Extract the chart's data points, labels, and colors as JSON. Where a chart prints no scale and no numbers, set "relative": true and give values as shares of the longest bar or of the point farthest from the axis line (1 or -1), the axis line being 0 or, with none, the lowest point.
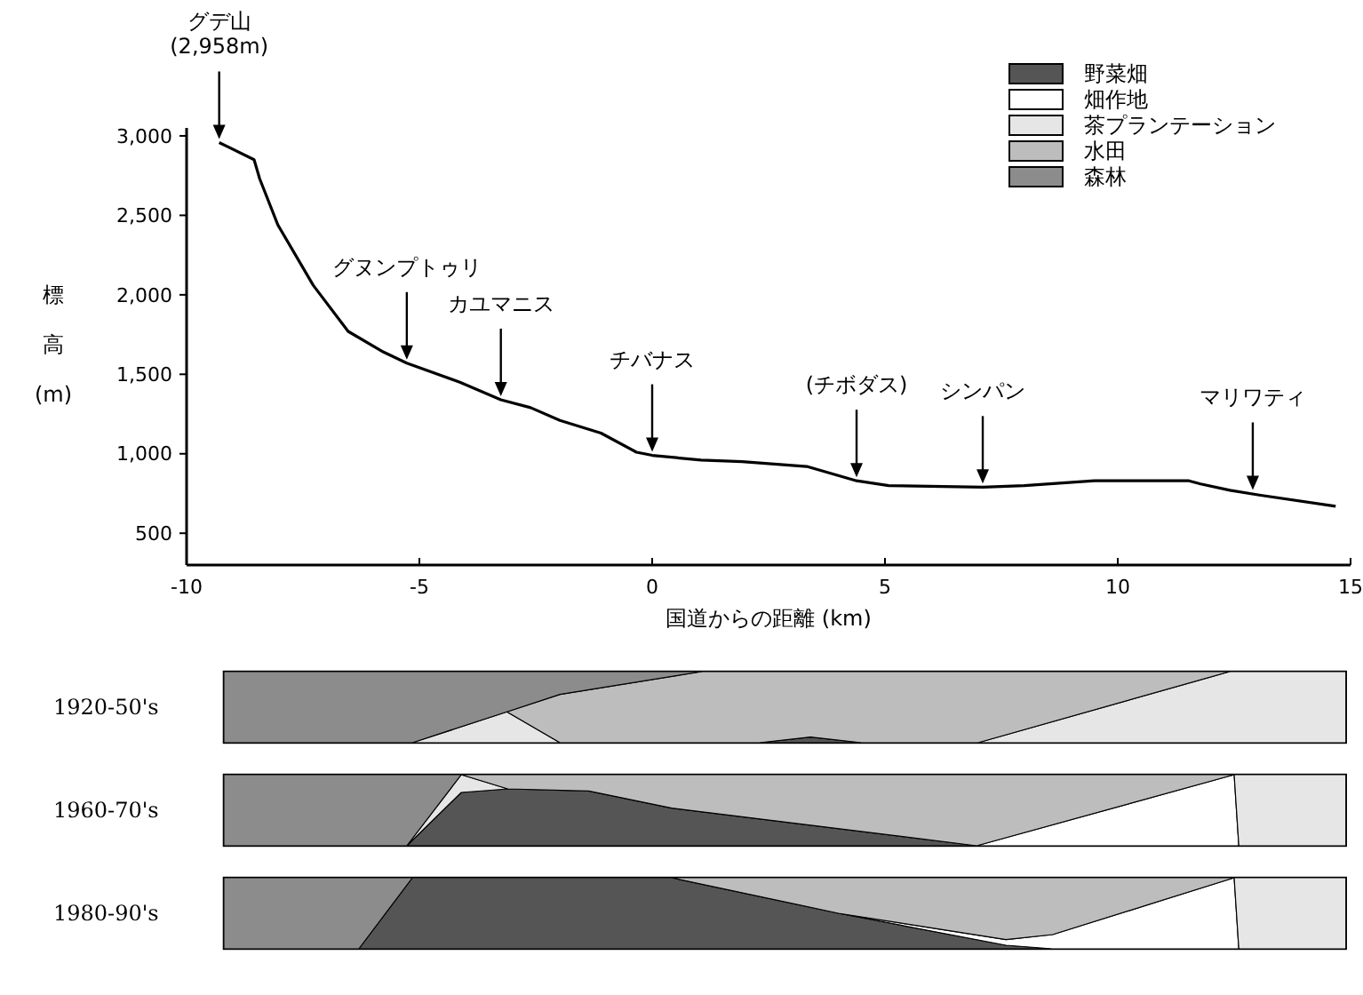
{
  "chart_data": [
    {
      "type": "line",
      "xlabel": "国道からの距離 (km)",
      "ylabel": "標高 (m)",
      "xlim": [
        -10,
        15
      ],
      "xticks": [
        -10,
        -5,
        0,
        5,
        10,
        15
      ],
      "ylim": [
        300,
        3050
      ],
      "yticks": [
        500,
        {
          "value": 1000,
          "label": "1,000"
        },
        {
          "value": 1500,
          "label": "1,500"
        },
        {
          "value": 2000,
          "label": "2,000"
        },
        {
          "value": 2500,
          "label": "2,500"
        },
        {
          "value": 3000,
          "label": "3,000"
        }
      ],
      "x": [
        -9.3,
        -8.55,
        -8.43,
        -8.04,
        -7.28,
        -6.53,
        -5.77,
        -5.27,
        -4.13,
        -3.25,
        -2.61,
        -1.98,
        -1.1,
        -0.34,
        0,
        1.05,
        1.93,
        3.32,
        4.39,
        5.08,
        7.1,
        7.99,
        9.5,
        11.53,
        11.78,
        12.41,
        13.04,
        14.68
      ],
      "series": [
        {
          "color": "#000000",
          "values": [
            2958,
            2850,
            2730,
            2440,
            2060,
            1770,
            1640,
            1570,
            1450,
            1340,
            1290,
            1210,
            1130,
            1010,
            990,
            960,
            950,
            920,
            830,
            800,
            790,
            800,
            830,
            830,
            810,
            770,
            740,
            670
          ]
        }
      ],
      "annotations": [
        {
          "text": "グデ山\n(2,958m)",
          "x": -9.3,
          "y": 2958
        },
        {
          "text": "グヌンプトゥリ",
          "x": -5.27,
          "y": 1570
        },
        {
          "text": "カユマニス",
          "x": -3.25,
          "y": 1340
        },
        {
          "text": "チバナス",
          "x": 0,
          "y": 990
        },
        {
          "text": "(チボダス)",
          "x": 4.39,
          "y": 830
        },
        {
          "text": "シンパン",
          "x": 7.1,
          "y": 790
        },
        {
          "text": "マリワティ",
          "x": 12.9,
          "y": 750
        }
      ]
    },
    {
      "type": "area",
      "title": "1920-50's",
      "stacked": true,
      "relative": true,
      "xlim": [
        -10,
        15
      ],
      "tick_labels": false,
      "x": [
        -9.2,
        -5.15,
        -3.12,
        -1.98,
        1.06,
        2.3,
        3.4,
        4.5,
        7,
        12.4,
        14.9
      ],
      "series": [
        {
          "color": "#555555",
          "values": [
            null,
            null,
            null,
            null,
            null,
            0,
            0.08,
            0,
            null,
            null,
            null
          ]
        },
        {
          "color": "#e6e6e6",
          "values": [
            null,
            0,
            0.435,
            0,
            null,
            null,
            null,
            null,
            0,
            1,
            1
          ]
        },
        {
          "color": "#bdbdbd",
          "values": [
            null,
            null,
            0,
            0.68,
            1,
            1,
            0.92,
            1,
            1,
            0,
            null
          ]
        },
        {
          "color": "#8c8c8c",
          "values": [
            1,
            1,
            0.565,
            0.32,
            0,
            null,
            null,
            null,
            null,
            null,
            null
          ]
        }
      ]
    },
    {
      "type": "area",
      "title": "1960-70's",
      "stacked": true,
      "relative": true,
      "xlim": [
        -10,
        15
      ],
      "tick_labels": false,
      "legend": "top right",
      "x": [
        -9.2,
        -5.27,
        -4.1,
        -3.1,
        -1.36,
        0.42,
        6.97,
        12.5,
        12.6,
        14.9
      ],
      "series": [
        {
          "name": "野菜畑",
          "color": "#555555",
          "values": [
            null,
            0,
            0.75,
            0.8,
            0.77,
            0.53,
            0,
            null,
            null,
            null
          ]
        },
        {
          "name": "畑作地",
          "color": "#ffffff",
          "values": [
            null,
            null,
            null,
            null,
            null,
            null,
            0,
            1,
            0,
            null
          ]
        },
        {
          "name": "茶プランテーション",
          "color": "#e6e6e6",
          "values": [
            null,
            0,
            0.25,
            0,
            null,
            null,
            null,
            0,
            1,
            1
          ]
        },
        {
          "name": "水田",
          "color": "#bdbdbd",
          "values": [
            null,
            null,
            0,
            0.2,
            0.23,
            0.47,
            1,
            0,
            null,
            null
          ]
        },
        {
          "name": "森林",
          "color": "#8c8c8c",
          "values": [
            1,
            1,
            0,
            null,
            null,
            null,
            null,
            null,
            null,
            null
          ]
        }
      ]
    },
    {
      "type": "area",
      "title": "1980-90's",
      "stacked": true,
      "relative": true,
      "xlim": [
        -10,
        15
      ],
      "tick_labels": false,
      "x": [
        -9.2,
        -6.3,
        -5.15,
        0.42,
        4,
        7.6,
        8.6,
        12.5,
        12.6,
        14.9
      ],
      "series": [
        {
          "color": "#555555",
          "values": [
            null,
            0,
            1,
            1,
            0.5,
            0.05,
            0,
            null,
            null,
            null
          ]
        },
        {
          "color": "#ffffff",
          "values": [
            null,
            null,
            null,
            null,
            0,
            0.08,
            0.2,
            1,
            0,
            null
          ]
        },
        {
          "color": "#e6e6e6",
          "values": [
            null,
            null,
            null,
            null,
            null,
            null,
            null,
            0,
            1,
            1
          ]
        },
        {
          "color": "#bdbdbd",
          "values": [
            null,
            null,
            null,
            0,
            0.5,
            0.87,
            0.8,
            0,
            null,
            null
          ]
        },
        {
          "color": "#8c8c8c",
          "values": [
            1,
            1,
            0,
            null,
            null,
            null,
            null,
            null,
            null,
            null
          ]
        }
      ]
    }
  ]
}
